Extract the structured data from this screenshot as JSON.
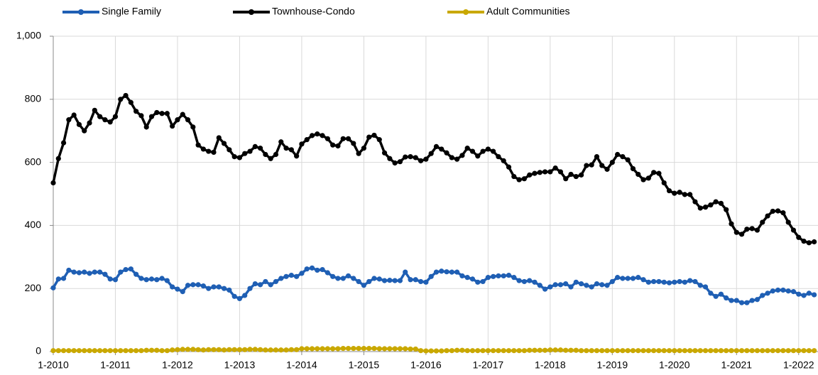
{
  "chart_data": {
    "type": "line",
    "categories": [
      "1-2010",
      null,
      null,
      null,
      null,
      null,
      null,
      null,
      null,
      null,
      null,
      null,
      "1-2011",
      null,
      null,
      null,
      null,
      null,
      null,
      null,
      null,
      null,
      null,
      null,
      "1-2012",
      null,
      null,
      null,
      null,
      null,
      null,
      null,
      null,
      null,
      null,
      null,
      "1-2013",
      null,
      null,
      null,
      null,
      null,
      null,
      null,
      null,
      null,
      null,
      null,
      "1-2014",
      null,
      null,
      null,
      null,
      null,
      null,
      null,
      null,
      null,
      null,
      null,
      "1-2015",
      null,
      null,
      null,
      null,
      null,
      null,
      null,
      null,
      null,
      null,
      null,
      "1-2016",
      null,
      null,
      null,
      null,
      null,
      null,
      null,
      null,
      null,
      null,
      null,
      "1-2017",
      null,
      null,
      null,
      null,
      null,
      null,
      null,
      null,
      null,
      null,
      null,
      "1-2018",
      null,
      null,
      null,
      null,
      null,
      null,
      null,
      null,
      null,
      null,
      null,
      "1-2019",
      null,
      null,
      null,
      null,
      null,
      null,
      null,
      null,
      null,
      null,
      null,
      "1-2020",
      null,
      null,
      null,
      null,
      null,
      null,
      null,
      null,
      null,
      null,
      null,
      "1-2021",
      null,
      null,
      null,
      null,
      null,
      null,
      null,
      null,
      null,
      null,
      null,
      "1-2022",
      null,
      null,
      null
    ],
    "series": [
      {
        "name": "Single Family",
        "color": "#1f5fb4",
        "values": [
          202,
          230,
          232,
          258,
          252,
          250,
          252,
          248,
          252,
          252,
          245,
          230,
          228,
          252,
          260,
          262,
          245,
          232,
          228,
          230,
          228,
          232,
          225,
          205,
          198,
          190,
          210,
          212,
          212,
          208,
          200,
          205,
          205,
          200,
          195,
          175,
          168,
          178,
          200,
          215,
          212,
          222,
          212,
          222,
          232,
          238,
          242,
          238,
          248,
          262,
          265,
          258,
          260,
          250,
          238,
          232,
          232,
          240,
          232,
          222,
          210,
          222,
          232,
          230,
          225,
          226,
          225,
          225,
          252,
          228,
          228,
          222,
          220,
          238,
          252,
          255,
          253,
          252,
          252,
          240,
          235,
          230,
          220,
          222,
          235,
          238,
          240,
          240,
          242,
          235,
          225,
          222,
          225,
          220,
          210,
          198,
          205,
          212,
          212,
          215,
          205,
          220,
          215,
          210,
          205,
          215,
          212,
          210,
          222,
          235,
          232,
          232,
          232,
          235,
          228,
          220,
          222,
          222,
          220,
          218,
          220,
          222,
          220,
          225,
          222,
          210,
          205,
          185,
          175,
          182,
          170,
          162,
          162,
          155,
          155,
          162,
          165,
          178,
          185,
          192,
          195,
          195,
          192,
          190,
          182,
          178,
          185,
          180
        ]
      },
      {
        "name": "Townhouse-Condo",
        "color": "#000000",
        "values": [
          535,
          612,
          662,
          735,
          750,
          720,
          700,
          725,
          765,
          745,
          735,
          728,
          745,
          800,
          812,
          790,
          762,
          748,
          712,
          745,
          758,
          755,
          755,
          715,
          735,
          752,
          735,
          712,
          655,
          642,
          635,
          632,
          678,
          660,
          640,
          618,
          615,
          628,
          635,
          650,
          645,
          625,
          612,
          625,
          665,
          645,
          640,
          620,
          658,
          672,
          685,
          690,
          685,
          675,
          655,
          652,
          675,
          675,
          660,
          628,
          645,
          680,
          686,
          672,
          630,
          612,
          598,
          602,
          617,
          618,
          615,
          605,
          610,
          628,
          650,
          642,
          630,
          615,
          610,
          622,
          645,
          635,
          620,
          635,
          642,
          635,
          618,
          605,
          585,
          555,
          545,
          548,
          560,
          565,
          568,
          570,
          570,
          582,
          570,
          548,
          562,
          555,
          560,
          590,
          592,
          618,
          590,
          578,
          600,
          625,
          618,
          608,
          580,
          562,
          545,
          550,
          568,
          565,
          535,
          510,
          502,
          505,
          498,
          498,
          475,
          455,
          458,
          465,
          475,
          470,
          450,
          405,
          378,
          372,
          388,
          390,
          385,
          410,
          430,
          445,
          446,
          440,
          410,
          385,
          362,
          350,
          345,
          348
        ]
      },
      {
        "name": "Adult Communities",
        "color": "#c9a800",
        "values": [
          3,
          3,
          3,
          3,
          3,
          3,
          3,
          3,
          3,
          3,
          3,
          3,
          3,
          3,
          3,
          3,
          3,
          3,
          4,
          4,
          4,
          3,
          3,
          5,
          6,
          7,
          7,
          7,
          6,
          5,
          6,
          6,
          6,
          5,
          6,
          6,
          6,
          6,
          7,
          7,
          6,
          5,
          5,
          5,
          5,
          5,
          6,
          6,
          9,
          9,
          9,
          9,
          9,
          9,
          9,
          9,
          10,
          10,
          10,
          10,
          10,
          10,
          10,
          9,
          9,
          9,
          9,
          9,
          9,
          8,
          8,
          3,
          2,
          2,
          2,
          2,
          3,
          3,
          4,
          4,
          3,
          3,
          3,
          3,
          3,
          3,
          3,
          3,
          3,
          3,
          3,
          3,
          4,
          4,
          4,
          4,
          5,
          5,
          5,
          4,
          4,
          4,
          3,
          3,
          3,
          3,
          3,
          3,
          3,
          3,
          3,
          3,
          3,
          3,
          3,
          3,
          3,
          3,
          3,
          3,
          3,
          3,
          3,
          3,
          3,
          3,
          3,
          3,
          3,
          3,
          3,
          3,
          3,
          3,
          3,
          3,
          3,
          3,
          3,
          3,
          3,
          3,
          3,
          3,
          3,
          3,
          3,
          3
        ]
      }
    ],
    "ylim": [
      0,
      1000
    ],
    "yticks": [
      0,
      200,
      400,
      600,
      800,
      {
        "value": 1000,
        "label": "1,000"
      }
    ],
    "grid": true
  }
}
